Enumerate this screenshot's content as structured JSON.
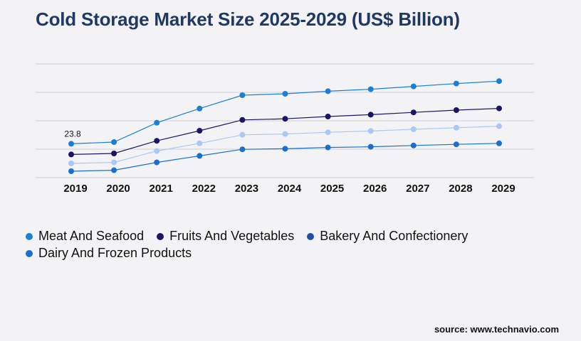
{
  "title": "Cold Storage Market Size 2025-2029 (US$ Billion)",
  "source": "source: www.technavio.com",
  "chart_data": {
    "type": "line",
    "title": "Cold Storage Market Size 2025-2029 (US$ Billion)",
    "xlabel": "",
    "ylabel": "",
    "x": [
      "2019",
      "2020",
      "2021",
      "2022",
      "2023",
      "2024",
      "2025",
      "2026",
      "2027",
      "2028",
      "2029"
    ],
    "ylim": [
      0,
      80
    ],
    "grid": true,
    "legend_position": "bottom",
    "annotations": [
      {
        "series": "Meat And Seafood",
        "x": "2019",
        "text": "23.8"
      }
    ],
    "series": [
      {
        "name": "Meat And Seafood",
        "color": "#1b7fd6",
        "values": [
          23.8,
          25.0,
          38.6,
          48.6,
          58.0,
          59.0,
          60.8,
          62.2,
          64.2,
          66.2,
          67.9
        ]
      },
      {
        "name": "Fruits And Vegetables",
        "color": "#1a1566",
        "values": [
          16.3,
          17.0,
          25.9,
          33.0,
          40.6,
          41.4,
          43.0,
          44.3,
          45.9,
          47.5,
          48.7
        ]
      },
      {
        "name": "Bakery And Confectionery",
        "color": "#a9c8f5",
        "values": [
          10.0,
          10.7,
          18.7,
          24.1,
          30.1,
          30.7,
          31.9,
          32.8,
          34.0,
          35.1,
          36.2
        ]
      },
      {
        "name": "Dairy And Frozen Products",
        "color": "#1a6fcc",
        "values": [
          4.5,
          5.2,
          10.7,
          15.3,
          19.9,
          20.3,
          21.2,
          21.7,
          22.6,
          23.4,
          24.1
        ]
      }
    ]
  },
  "legend": [
    {
      "label": "Meat And Seafood",
      "color": "#1b7fd6"
    },
    {
      "label": "Fruits And Vegetables",
      "color": "#1a1566"
    },
    {
      "label": "Bakery And Confectionery",
      "color": "#1f4fa8"
    },
    {
      "label": "Dairy And Frozen Products",
      "color": "#1a6fcc"
    }
  ]
}
